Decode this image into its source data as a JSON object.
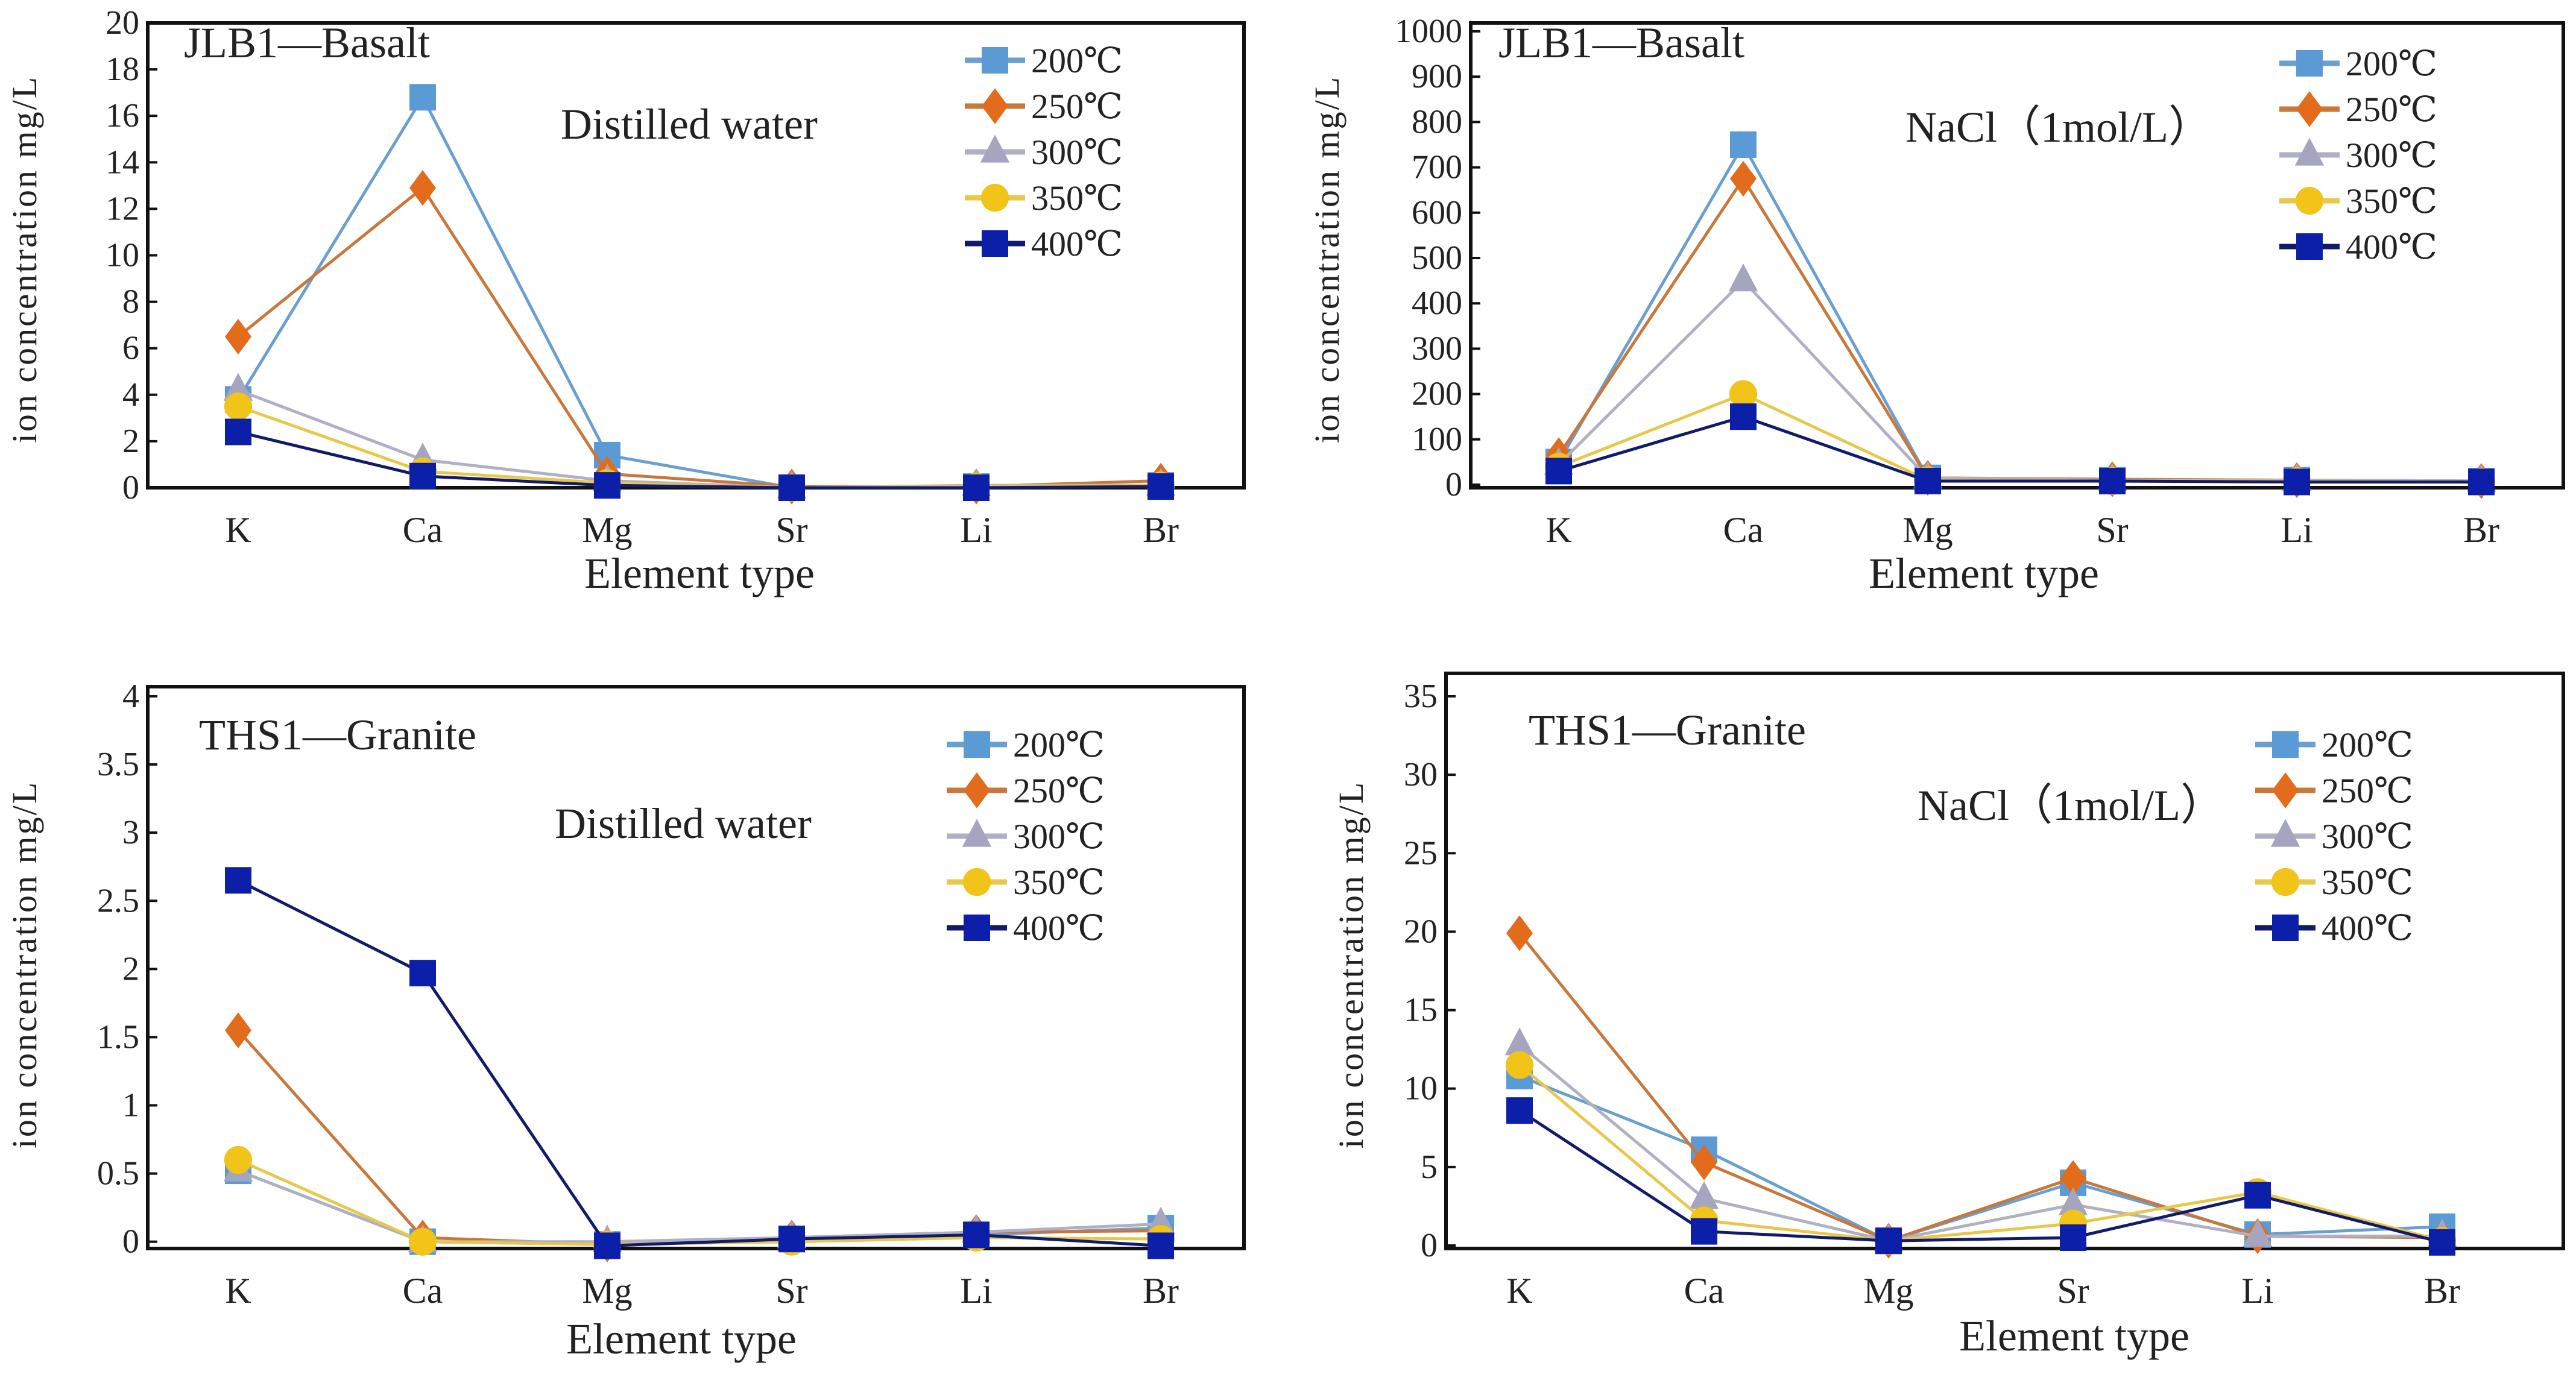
{
  "colors": {
    "200": "#5b9bd5",
    "250": "#e36c1c",
    "300": "#a5a5c0",
    "350": "#f2c318",
    "400": "#0b1fa8"
  },
  "line_colors": {
    "200": "#6a9fcf",
    "250": "#c9773a",
    "300": "#b0b0c4",
    "350": "#e8c84a",
    "400": "#111a6b"
  },
  "markers": {
    "200": "square",
    "250": "diamond",
    "300": "triangle",
    "350": "circle",
    "400": "square"
  },
  "chart_data": [
    {
      "type": "line",
      "title": "JLB1—Basalt",
      "subtitle": "Distilled water",
      "xlabel": "Element type",
      "ylabel": "ion concentration mg/L",
      "categories": [
        "K",
        "Ca",
        "Mg",
        "Sr",
        "Li",
        "Br"
      ],
      "ylim": [
        0,
        20
      ],
      "yticks": [
        0,
        2,
        4,
        6,
        8,
        10,
        12,
        14,
        16,
        18,
        20
      ],
      "legend_position": "top-right",
      "series": [
        {
          "name": "200℃",
          "key": "200",
          "values": [
            3.8,
            16.8,
            1.4,
            0.0,
            0.05,
            0.1
          ]
        },
        {
          "name": "250℃",
          "key": "250",
          "values": [
            6.5,
            12.9,
            0.6,
            0.05,
            0.05,
            0.3
          ]
        },
        {
          "name": "300℃",
          "key": "300",
          "values": [
            4.2,
            1.2,
            0.3,
            0.0,
            0.1,
            0.1
          ]
        },
        {
          "name": "350℃",
          "key": "350",
          "values": [
            3.5,
            0.7,
            0.2,
            0.0,
            0.05,
            0.1
          ]
        },
        {
          "name": "400℃",
          "key": "400",
          "values": [
            2.4,
            0.5,
            0.1,
            0.0,
            0.0,
            0.05
          ]
        }
      ]
    },
    {
      "type": "line",
      "title": "JLB1—Basalt",
      "subtitle": "NaCl（1mol/L）",
      "xlabel": "Element type",
      "ylabel": "ion concentration mg/L",
      "categories": [
        "K",
        "Ca",
        "Mg",
        "Sr",
        "Li",
        "Br"
      ],
      "ylim": [
        0,
        1000
      ],
      "yticks": [
        0,
        100,
        200,
        300,
        400,
        500,
        600,
        700,
        800,
        900,
        1000
      ],
      "legend_position": "top-right",
      "series": [
        {
          "name": "200℃",
          "key": "200",
          "values": [
            50,
            750,
            15,
            10,
            10,
            8
          ]
        },
        {
          "name": "250℃",
          "key": "250",
          "values": [
            65,
            675,
            15,
            12,
            10,
            8
          ]
        },
        {
          "name": "300℃",
          "key": "300",
          "values": [
            45,
            450,
            15,
            10,
            10,
            8
          ]
        },
        {
          "name": "350℃",
          "key": "350",
          "values": [
            40,
            200,
            10,
            8,
            8,
            6
          ]
        },
        {
          "name": "400℃",
          "key": "400",
          "values": [
            30,
            150,
            8,
            8,
            6,
            6
          ]
        }
      ]
    },
    {
      "type": "line",
      "title": "THS1—Granite",
      "subtitle": "Distilled water",
      "xlabel": "Element type",
      "ylabel": "ion concentration mg/L",
      "categories": [
        "K",
        "Ca",
        "Mg",
        "Sr",
        "Li",
        "Br"
      ],
      "ylim": [
        -0.05,
        4
      ],
      "yticks": [
        0,
        0.5,
        1,
        1.5,
        2,
        2.5,
        3,
        3.5,
        4
      ],
      "legend_position": "top-right",
      "series": [
        {
          "name": "200℃",
          "key": "200",
          "values": [
            0.52,
            0.0,
            -0.02,
            0.02,
            0.05,
            0.1
          ]
        },
        {
          "name": "250℃",
          "key": "250",
          "values": [
            1.55,
            0.03,
            -0.02,
            0.03,
            0.07,
            0.08
          ]
        },
        {
          "name": "300℃",
          "key": "300",
          "values": [
            0.52,
            0.0,
            0.0,
            0.03,
            0.07,
            0.13
          ]
        },
        {
          "name": "350℃",
          "key": "350",
          "values": [
            0.6,
            0.0,
            -0.02,
            0.0,
            0.03,
            0.02
          ]
        },
        {
          "name": "400℃",
          "key": "400",
          "values": [
            2.65,
            1.97,
            -0.03,
            0.02,
            0.05,
            -0.03
          ]
        }
      ]
    },
    {
      "type": "line",
      "title": "THS1—Granite",
      "subtitle": "NaCl（1mol/L）",
      "xlabel": "Element type",
      "ylabel": "ion concentration mg/L",
      "categories": [
        "K",
        "Ca",
        "Mg",
        "Sr",
        "Li",
        "Br"
      ],
      "ylim": [
        0,
        35
      ],
      "yticks": [
        0,
        5,
        10,
        15,
        20,
        25,
        30,
        35
      ],
      "legend_position": "top-right",
      "series": [
        {
          "name": "200℃",
          "key": "200",
          "values": [
            10.8,
            6.1,
            0.3,
            4.0,
            0.7,
            1.2
          ]
        },
        {
          "name": "250℃",
          "key": "250",
          "values": [
            19.9,
            5.3,
            0.3,
            4.3,
            0.6,
            0.5
          ]
        },
        {
          "name": "300℃",
          "key": "300",
          "values": [
            12.8,
            3.0,
            0.3,
            2.6,
            0.6,
            0.6
          ]
        },
        {
          "name": "350℃",
          "key": "350",
          "values": [
            11.5,
            1.6,
            0.3,
            1.4,
            3.4,
            0.3
          ]
        },
        {
          "name": "400℃",
          "key": "400",
          "values": [
            8.6,
            0.9,
            0.3,
            0.5,
            3.2,
            0.2
          ]
        }
      ]
    }
  ]
}
